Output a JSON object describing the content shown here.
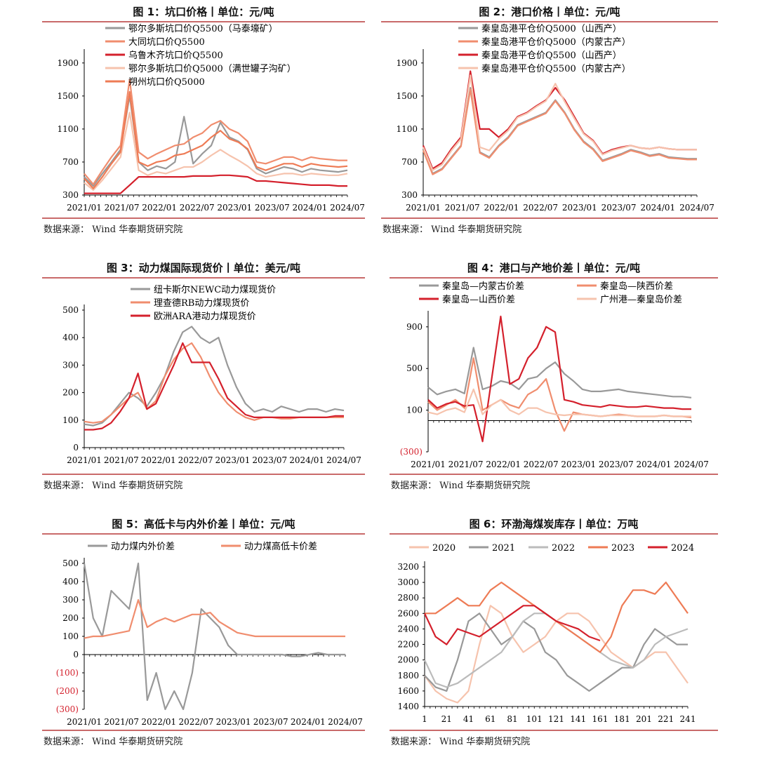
{
  "source_label": "数据来源： Wind 华泰期货研究院",
  "chart_data": [
    {
      "type": "line",
      "title": "图 1：坑口价格丨单位：元/吨",
      "x_ticks": [
        "2021/01",
        "2021/07",
        "2022/01",
        "2022/07",
        "2023/01",
        "2023/07",
        "2024/01",
        "2024/07"
      ],
      "y_ticks": [
        "1900",
        "1500",
        "1100",
        "700",
        "300"
      ],
      "ylim": [
        300,
        2000
      ],
      "legend_position": "top",
      "series": [
        {
          "name": "鄂尔多斯坑口价Q5500（马泰壕矿）",
          "color": "#999999",
          "values": [
            520,
            410,
            560,
            700,
            850,
            1500,
            700,
            600,
            650,
            620,
            700,
            1250,
            680,
            800,
            900,
            1180,
            1000,
            950,
            850,
            620,
            560,
            600,
            640,
            620,
            580,
            620,
            600,
            590,
            580,
            600
          ]
        },
        {
          "name": "大同坑口价Q5500",
          "color": "#f08d6e",
          "values": [
            560,
            430,
            600,
            760,
            900,
            1700,
            820,
            740,
            800,
            850,
            900,
            920,
            1000,
            1050,
            1150,
            1200,
            1100,
            1050,
            950,
            700,
            680,
            720,
            760,
            760,
            720,
            760,
            740,
            730,
            720,
            720
          ]
        },
        {
          "name": "乌鲁木齐坑口价Q5500",
          "color": "#d4202c",
          "values": [
            320,
            320,
            320,
            320,
            320,
            420,
            520,
            520,
            520,
            520,
            520,
            520,
            530,
            530,
            530,
            540,
            540,
            530,
            520,
            470,
            470,
            460,
            450,
            440,
            430,
            420,
            420,
            420,
            410,
            410
          ]
        },
        {
          "name": "鄂尔多斯坑口价Q5000（满世罐子沟矿）",
          "color": "#f6c3ad",
          "values": [
            450,
            360,
            480,
            620,
            760,
            1300,
            600,
            540,
            580,
            560,
            600,
            640,
            640,
            700,
            780,
            850,
            780,
            720,
            650,
            560,
            520,
            540,
            560,
            560,
            540,
            560,
            550,
            540,
            540,
            560
          ]
        },
        {
          "name": "朔州坑口价Q5000",
          "color": "#ee7b55",
          "values": [
            500,
            380,
            520,
            680,
            820,
            1550,
            700,
            650,
            700,
            720,
            780,
            800,
            850,
            900,
            1000,
            1080,
            980,
            940,
            860,
            640,
            600,
            640,
            680,
            680,
            640,
            680,
            660,
            650,
            640,
            650
          ]
        }
      ]
    },
    {
      "type": "line",
      "title": "图 2：港口价格丨单位：元/吨",
      "x_ticks": [
        "2021/01",
        "2021/07",
        "2022/01",
        "2022/07",
        "2023/01",
        "2023/07",
        "2024/01",
        "2024/07"
      ],
      "y_ticks": [
        "1900",
        "1500",
        "1100",
        "700",
        "300"
      ],
      "ylim": [
        300,
        2000
      ],
      "legend_position": "top",
      "series": [
        {
          "name": "秦皇岛港平仓价Q5000（山西产）",
          "color": "#999999",
          "values": [
            850,
            560,
            620,
            760,
            900,
            1600,
            820,
            760,
            900,
            1000,
            1150,
            1200,
            1250,
            1300,
            1450,
            1300,
            1100,
            950,
            860,
            720,
            760,
            800,
            850,
            820,
            780,
            800,
            760,
            750,
            740,
            740
          ]
        },
        {
          "name": "秦皇岛港平仓价Q5000（内蒙古产）",
          "color": "#f08d6e",
          "values": [
            840,
            550,
            610,
            750,
            890,
            1580,
            810,
            750,
            890,
            990,
            1140,
            1190,
            1240,
            1290,
            1440,
            1290,
            1090,
            940,
            850,
            710,
            750,
            790,
            840,
            810,
            770,
            790,
            750,
            740,
            730,
            730
          ]
        },
        {
          "name": "秦皇岛港平仓价Q5500（山西产）",
          "color": "#d4202c",
          "values": [
            900,
            620,
            690,
            860,
            1000,
            1800,
            1100,
            1100,
            1000,
            1100,
            1250,
            1300,
            1380,
            1450,
            1600,
            1450,
            1250,
            1050,
            960,
            800,
            850,
            880,
            900,
            870,
            860,
            880,
            860,
            850,
            850,
            850
          ]
        },
        {
          "name": "秦皇岛港平仓价Q5500（内蒙古产）",
          "color": "#f6c3ad",
          "values": [
            880,
            600,
            670,
            840,
            980,
            1750,
            880,
            840,
            980,
            1080,
            1240,
            1290,
            1370,
            1440,
            1650,
            1430,
            1230,
            1040,
            950,
            790,
            840,
            870,
            900,
            870,
            860,
            880,
            860,
            850,
            850,
            850
          ]
        }
      ]
    },
    {
      "type": "line",
      "title": "图 3：动力煤国际现货价丨单位：美元/吨",
      "x_ticks": [
        "2021/01",
        "2021/07",
        "2022/01",
        "2022/07",
        "2023/01",
        "2023/07",
        "2024/01",
        "2024/07"
      ],
      "y_ticks": [
        "500",
        "400",
        "300",
        "200",
        "100",
        "0"
      ],
      "ylim": [
        0,
        500
      ],
      "legend_position": "top",
      "series": [
        {
          "name": "纽卡斯尔NEWC动力煤现货价",
          "color": "#999999",
          "values": [
            85,
            80,
            90,
            120,
            160,
            200,
            180,
            150,
            200,
            260,
            350,
            420,
            440,
            400,
            380,
            400,
            300,
            220,
            160,
            130,
            140,
            130,
            150,
            140,
            130,
            140,
            140,
            130,
            140,
            135
          ]
        },
        {
          "name": "理查德RB动力煤现货价",
          "color": "#f08d6e",
          "values": [
            95,
            90,
            95,
            120,
            150,
            180,
            200,
            140,
            170,
            260,
            320,
            360,
            380,
            330,
            260,
            200,
            160,
            130,
            110,
            100,
            110,
            110,
            105,
            105,
            110,
            110,
            110,
            110,
            110,
            110
          ]
        },
        {
          "name": "欧洲ARA港动力煤现货价",
          "color": "#d4202c",
          "values": [
            65,
            65,
            70,
            90,
            130,
            180,
            270,
            140,
            160,
            230,
            300,
            380,
            310,
            310,
            310,
            250,
            180,
            150,
            120,
            110,
            110,
            110,
            110,
            110,
            110,
            110,
            110,
            110,
            115,
            115
          ]
        }
      ]
    },
    {
      "type": "line",
      "title": "图 4：港口与产地价差丨单位：元/吨",
      "x_ticks": [
        "2021/01",
        "2021/07",
        "2022/01",
        "2022/07",
        "2023/01",
        "2023/07",
        "2024/01",
        "2024/07"
      ],
      "y_ticks": [
        "900",
        "500",
        "100",
        "(300)"
      ],
      "ylim": [
        -300,
        1000
      ],
      "legend_position": "top",
      "series": [
        {
          "name": "秦皇岛—内蒙古价差",
          "color": "#999999",
          "values": [
            320,
            250,
            280,
            300,
            260,
            700,
            300,
            330,
            380,
            360,
            300,
            400,
            420,
            500,
            560,
            450,
            380,
            300,
            280,
            280,
            290,
            300,
            280,
            270,
            260,
            250,
            240,
            230,
            230,
            220
          ]
        },
        {
          "name": "秦皇岛—陕西价差",
          "color": "#f08d6e",
          "values": [
            180,
            100,
            150,
            200,
            120,
            600,
            100,
            150,
            200,
            150,
            120,
            250,
            300,
            400,
            100,
            -100,
            80,
            60,
            50,
            40,
            50,
            60,
            50,
            40,
            40,
            40,
            50,
            40,
            40,
            30
          ]
        },
        {
          "name": "秦皇岛—山西价差",
          "color": "#d4202c",
          "values": [
            200,
            120,
            160,
            180,
            140,
            150,
            -200,
            400,
            1000,
            350,
            400,
            600,
            700,
            900,
            850,
            200,
            180,
            150,
            140,
            130,
            150,
            140,
            130,
            130,
            140,
            130,
            120,
            120,
            110,
            110
          ]
        },
        {
          "name": "广州港—秦皇岛价差",
          "color": "#f6c3ad",
          "values": [
            80,
            60,
            100,
            120,
            80,
            300,
            60,
            150,
            200,
            100,
            60,
            120,
            120,
            80,
            60,
            50,
            60,
            60,
            50,
            40,
            50,
            50,
            50,
            40,
            40,
            40,
            50,
            40,
            40,
            40
          ]
        }
      ]
    },
    {
      "type": "line",
      "title": "图 5：高低卡与内外价差丨单位：元/吨",
      "x_ticks": [
        "2021/01",
        "2021/07",
        "2022/01",
        "2022/07",
        "2023/01",
        "2023/07",
        "2024/01",
        "2024/07"
      ],
      "y_ticks": [
        "500",
        "400",
        "300",
        "200",
        "100",
        "0",
        "(100)",
        "(200)",
        "(300)"
      ],
      "ylim": [
        -300,
        500
      ],
      "legend_position": "top",
      "series": [
        {
          "name": "动力煤内外价差",
          "color": "#999999",
          "values": [
            500,
            200,
            100,
            350,
            300,
            250,
            500,
            -250,
            -100,
            -300,
            -200,
            -300,
            -100,
            250,
            200,
            150,
            50,
            0,
            0,
            0,
            0,
            0,
            0,
            -10,
            -10,
            0,
            10,
            0,
            0,
            0
          ]
        },
        {
          "name": "动力煤高低卡价差",
          "color": "#f08d6e",
          "values": [
            90,
            100,
            100,
            110,
            120,
            130,
            300,
            150,
            180,
            200,
            180,
            200,
            220,
            220,
            230,
            180,
            150,
            120,
            110,
            100,
            100,
            100,
            100,
            100,
            100,
            100,
            100,
            100,
            100,
            100
          ]
        }
      ]
    },
    {
      "type": "line",
      "title": "图 6：环渤海煤炭库存丨单位：万吨",
      "x_ticks": [
        "1",
        "21",
        "41",
        "61",
        "81",
        "101",
        "121",
        "141",
        "161",
        "181",
        "201",
        "221",
        "241"
      ],
      "y_ticks": [
        "3200",
        "3000",
        "2800",
        "2600",
        "2400",
        "2200",
        "2000",
        "1800",
        "1600",
        "1400"
      ],
      "ylim": [
        1400,
        3200
      ],
      "legend_position": "top",
      "series": [
        {
          "name": "2020",
          "color": "#f6c3ad",
          "values": [
            1800,
            1600,
            1500,
            1450,
            1600,
            2200,
            2700,
            2600,
            2300,
            2100,
            2200,
            2300,
            2500,
            2600,
            2600,
            2500,
            2300,
            2100,
            2000,
            1900,
            2000,
            2100,
            2100,
            1900,
            1700
          ]
        },
        {
          "name": "2021",
          "color": "#999999",
          "values": [
            1800,
            1650,
            1600,
            2000,
            2500,
            2600,
            2400,
            2200,
            2300,
            2500,
            2400,
            2100,
            2000,
            1800,
            1700,
            1600,
            1700,
            1800,
            1900,
            1900,
            2200,
            2400,
            2300,
            2200,
            2200
          ]
        },
        {
          "name": "2022",
          "color": "#bbbbbb",
          "values": [
            2000,
            1700,
            1650,
            1700,
            1800,
            1900,
            2000,
            2100,
            2300,
            2500,
            2600,
            2600,
            2500,
            2400,
            2300,
            2200,
            2100,
            2000,
            1950,
            1900,
            2000,
            2200,
            2300,
            2350,
            2400
          ]
        },
        {
          "name": "2023",
          "color": "#ee7b55",
          "values": [
            2600,
            2600,
            2700,
            2800,
            2700,
            2700,
            2900,
            3000,
            2900,
            2800,
            2700,
            2600,
            2500,
            2400,
            2300,
            2200,
            2100,
            2300,
            2700,
            2900,
            2900,
            2850,
            3000,
            2800,
            2600
          ]
        },
        {
          "name": "2024",
          "color": "#d4202c",
          "values": [
            2600,
            2300,
            2200,
            2400,
            2350,
            2300,
            2400,
            2500,
            2600,
            2700,
            2700,
            2600,
            2500,
            2450,
            2400,
            2300,
            2250
          ]
        }
      ]
    }
  ]
}
